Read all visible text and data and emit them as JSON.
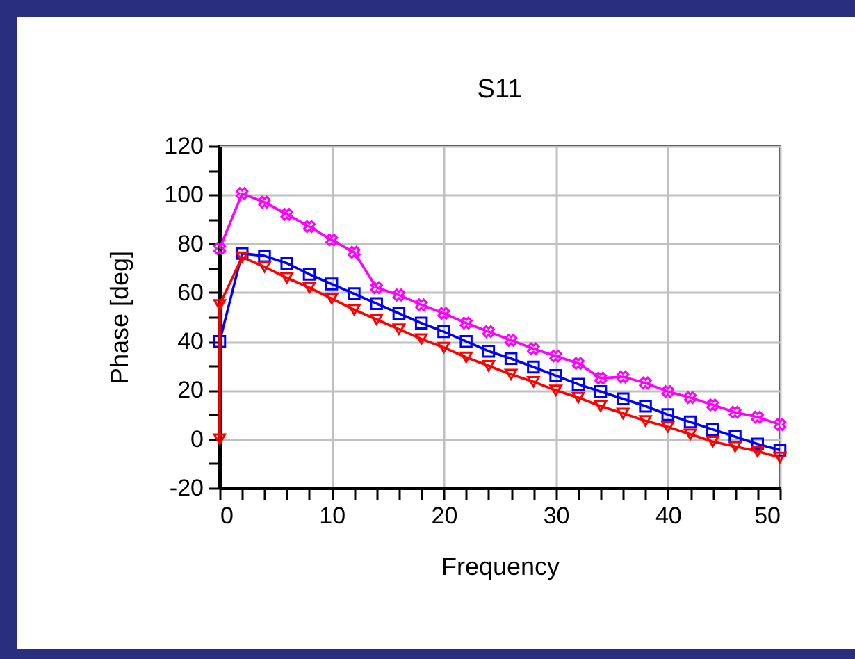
{
  "chart_data": {
    "type": "line",
    "title": "S11",
    "xlabel": "Frequency",
    "ylabel": "Phase [deg]",
    "xlim": [
      0,
      50
    ],
    "xticks": [
      0,
      {
        "value": 2,
        "label": null
      },
      {
        "value": 4,
        "label": null
      },
      {
        "value": 6,
        "label": null
      },
      {
        "value": 8,
        "label": null
      },
      10,
      {
        "value": 12,
        "label": null
      },
      {
        "value": 14,
        "label": null
      },
      {
        "value": 16,
        "label": null
      },
      {
        "value": 18,
        "label": null
      },
      20,
      {
        "value": 22,
        "label": null
      },
      {
        "value": 24,
        "label": null
      },
      {
        "value": 26,
        "label": null
      },
      {
        "value": 28,
        "label": null
      },
      30,
      {
        "value": 32,
        "label": null
      },
      {
        "value": 34,
        "label": null
      },
      {
        "value": 36,
        "label": null
      },
      {
        "value": 38,
        "label": null
      },
      40,
      {
        "value": 42,
        "label": null
      },
      {
        "value": 44,
        "label": null
      },
      {
        "value": 46,
        "label": null
      },
      {
        "value": 48,
        "label": null
      },
      50
    ],
    "ylim": [
      -20,
      120
    ],
    "yticks": [
      -20,
      {
        "value": -10,
        "label": null
      },
      0,
      {
        "value": 10,
        "label": null
      },
      20,
      {
        "value": 30,
        "label": null
      },
      40,
      {
        "value": 50,
        "label": null
      },
      60,
      {
        "value": 70,
        "label": null
      },
      80,
      {
        "value": 90,
        "label": null
      },
      100,
      {
        "value": 110,
        "label": null
      },
      120
    ],
    "grid": true,
    "line_style": "solid",
    "series": [
      {
        "color": "#ff00ff",
        "marker": "cross",
        "x": [
          0,
          2,
          4,
          6,
          8,
          10,
          12,
          14,
          16,
          18,
          20,
          22,
          24,
          26,
          28,
          30,
          32,
          34,
          36,
          38,
          40,
          42,
          44,
          46,
          48,
          50
        ],
        "values": [
          78,
          100.5,
          97,
          92,
          87,
          81.5,
          76.5,
          62,
          59,
          55,
          51.5,
          47.5,
          44,
          40.5,
          37,
          34,
          31,
          25,
          25.5,
          23,
          19.5,
          17,
          14,
          11,
          9,
          6
        ]
      },
      {
        "color": "#0000ff",
        "marker": "square",
        "x": [
          0,
          2,
          4,
          6,
          8,
          10,
          12,
          14,
          16,
          18,
          20,
          22,
          24,
          26,
          28,
          30,
          32,
          34,
          36,
          38,
          40,
          42,
          44,
          46,
          48,
          50
        ],
        "values": [
          40,
          76,
          75,
          72,
          67.5,
          63.5,
          59.5,
          55.5,
          51.5,
          47.5,
          44,
          40,
          36,
          33,
          29.5,
          26,
          22.5,
          19.5,
          16.5,
          13.5,
          10,
          7,
          4,
          1,
          -2,
          -4.5
        ]
      },
      {
        "color": "#ff0000",
        "marker": "triangle",
        "x": [
          0,
          0,
          2,
          4,
          6,
          8,
          10,
          12,
          14,
          16,
          18,
          20,
          22,
          24,
          26,
          28,
          30,
          32,
          34,
          36,
          38,
          40,
          42,
          44,
          46,
          48,
          50
        ],
        "values": [
          0,
          55,
          74.5,
          70.5,
          66,
          62,
          57.5,
          53,
          49,
          45,
          41,
          37.5,
          33.5,
          30,
          26.5,
          23.5,
          20,
          17,
          13.5,
          10.5,
          7.5,
          5,
          2,
          -1,
          -3,
          -5,
          -7.5
        ]
      }
    ]
  }
}
